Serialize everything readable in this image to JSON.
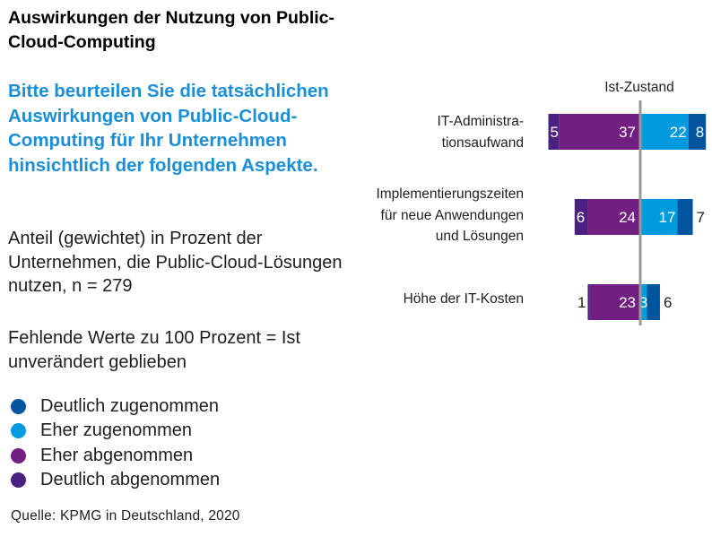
{
  "title": "Auswirkungen der Nutzung von Public-Cloud-Computing",
  "question": "Bitte beurteilen Sie die tatsächlichen Auswirkungen von Public-Cloud-Computing für Ihr Unternehmen hinsichtlich der folgenden Aspekte.",
  "notes": {
    "base": "Anteil (gewichtet) in Prozent der Unternehmen, die Public-Cloud-Lösungen nutzen, n = 279",
    "missing": "Fehlende Werte zu 100 Prozent = Ist unverändert geblieben"
  },
  "legend": [
    {
      "label": "Deutlich zugenommen",
      "color": "#00559f"
    },
    {
      "label": "Eher zugenommen",
      "color": "#009ade"
    },
    {
      "label": "Eher abgenommen",
      "color": "#721f82"
    },
    {
      "label": "Deutlich abgenommen",
      "color": "#4b2180"
    }
  ],
  "source": "Quelle: KPMG in Deutschland, 2020",
  "chart_data": {
    "type": "bar",
    "orientation": "horizontal",
    "stacking": "diverging",
    "column_header": "Ist-Zustand",
    "categories": [
      [
        "IT-Administra-",
        "tionsaufwand"
      ],
      [
        "Implementierungszeiten",
        "für neue Anwendungen",
        "und Lösungen"
      ],
      [
        "Höhe der IT-Kosten"
      ]
    ],
    "series": [
      {
        "name": "Deutlich abgenommen",
        "side": "negative",
        "color": "#4b2180",
        "values": [
          5,
          6,
          1
        ]
      },
      {
        "name": "Eher abgenommen",
        "side": "negative",
        "color": "#721f82",
        "values": [
          37,
          24,
          23
        ]
      },
      {
        "name": "Eher zugenommen",
        "side": "positive",
        "color": "#009ade",
        "values": [
          22,
          17,
          3
        ]
      },
      {
        "name": "Deutlich zugenommen",
        "side": "positive",
        "color": "#00559f",
        "values": [
          8,
          7,
          6
        ]
      }
    ],
    "unit": "%",
    "xlabel": "",
    "ylabel": "",
    "grid": false,
    "legend_position": "bottom-left"
  }
}
